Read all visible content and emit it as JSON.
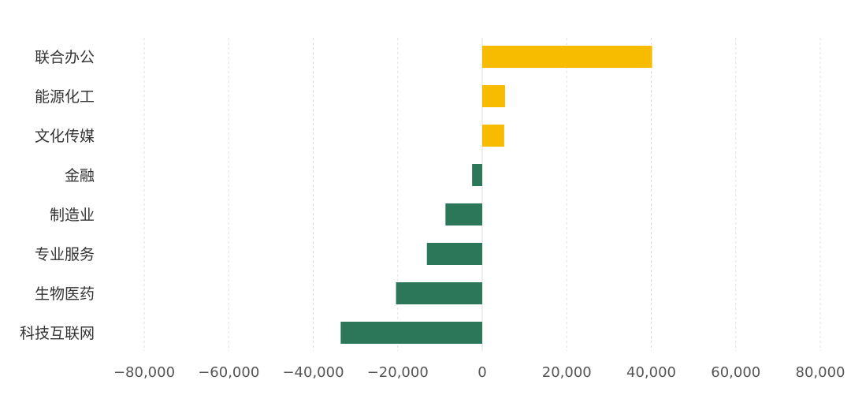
{
  "chart_data": {
    "type": "bar",
    "orientation": "horizontal",
    "categories": [
      "联合办公",
      "能源化工",
      "文化传媒",
      "金融",
      "制造业",
      "专业服务",
      "生物医药",
      "科技互联网"
    ],
    "values": [
      40200,
      5400,
      5200,
      -2400,
      -8700,
      -13100,
      -20400,
      -33500
    ],
    "xlim": [
      -80000,
      80000
    ],
    "xticks": [
      -80000,
      -60000,
      -40000,
      -20000,
      0,
      20000,
      40000,
      60000,
      80000
    ],
    "xtick_labels": [
      "−80,000",
      "−60,000",
      "−40,000",
      "−20,000",
      "0",
      "20,000",
      "40,000",
      "60,000",
      "80,000"
    ],
    "grid": "vertical dashed",
    "colors": {
      "positive": "#F7BB00",
      "negative": "#2C7659",
      "grid": "#e0e0e0"
    }
  }
}
